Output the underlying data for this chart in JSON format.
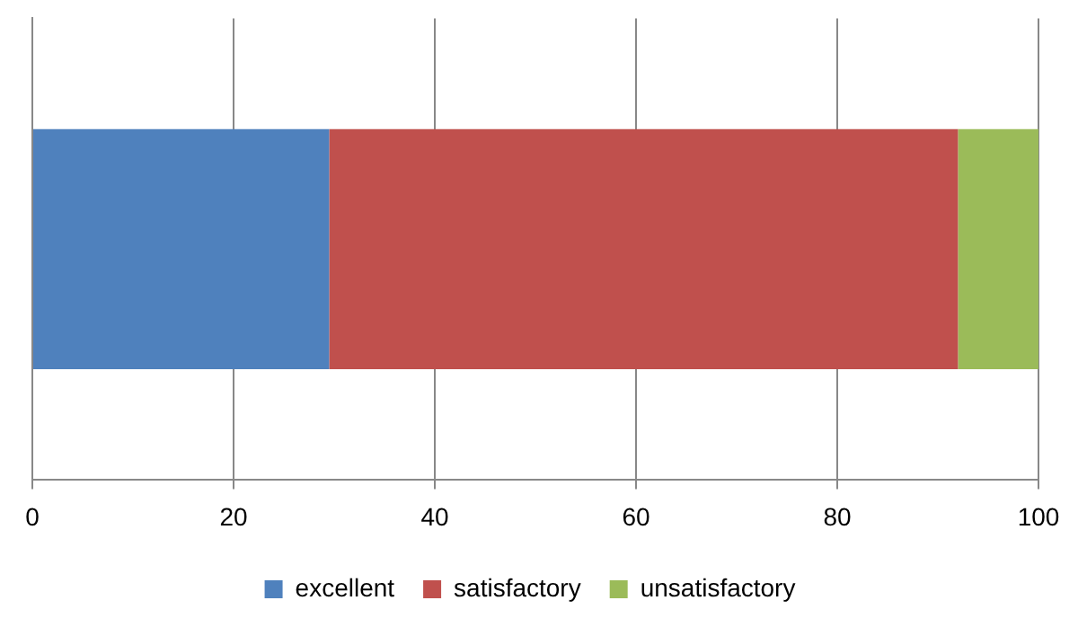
{
  "chart_data": {
    "type": "bar",
    "orientation": "horizontal",
    "stacked": true,
    "categories": [
      null
    ],
    "series": [
      {
        "name": "excellent",
        "color": "#4f81bd",
        "values": [
          29.5
        ]
      },
      {
        "name": "satisfactory",
        "color": "#c0504d",
        "values": [
          62.5
        ]
      },
      {
        "name": "unsatisfactory",
        "color": "#9bbb59",
        "values": [
          8
        ]
      }
    ],
    "xlim": [
      0,
      100
    ],
    "xticks": [
      0,
      20,
      40,
      60,
      80,
      100
    ],
    "grid": "x",
    "legend": "bottom"
  }
}
